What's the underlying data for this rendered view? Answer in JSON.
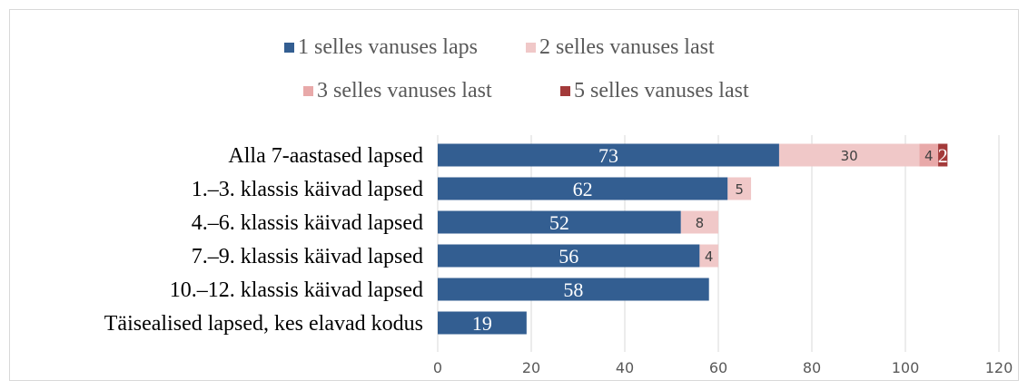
{
  "chart_data": {
    "type": "bar",
    "orientation": "horizontal",
    "stacked": true,
    "categories": [
      "Alla 7-aastased lapsed",
      "1.–3. klassis käivad lapsed",
      "4.–6. klassis käivad lapsed",
      "7.–9. klassis käivad lapsed",
      "10.–12. klassis käivad lapsed",
      "Täisealised lapsed, kes elavad kodus"
    ],
    "series": [
      {
        "name": "1 selles vanuses laps",
        "color": "#335e91",
        "values": [
          73,
          62,
          52,
          56,
          58,
          19
        ]
      },
      {
        "name": "2 selles vanuses last",
        "color": "#f0c8c8",
        "values": [
          30,
          5,
          8,
          4,
          0,
          0
        ]
      },
      {
        "name": "3 selles vanuses last",
        "color": "#e8a9a9",
        "values": [
          4,
          0,
          0,
          0,
          0,
          0
        ]
      },
      {
        "name": "5 selles vanuses last",
        "color": "#a33a3a",
        "values": [
          2,
          0,
          0,
          0,
          0,
          0
        ]
      }
    ],
    "data_labels": [
      [
        "73",
        "62",
        "52",
        "56",
        "58",
        "19"
      ],
      [
        "30",
        "5",
        "8",
        "4",
        "",
        ""
      ],
      [
        "4",
        "",
        "",
        "",
        "",
        ""
      ],
      [
        "2",
        "",
        "",
        "",
        "",
        ""
      ]
    ],
    "xlim": [
      0,
      120
    ],
    "xticks": [
      "0",
      "20",
      "40",
      "60",
      "80",
      "100",
      "120"
    ],
    "xtick_values": [
      0,
      20,
      40,
      60,
      80,
      100,
      120
    ],
    "grid": "vertical",
    "legend_position": "top",
    "title": "",
    "xlabel": "",
    "ylabel": ""
  }
}
